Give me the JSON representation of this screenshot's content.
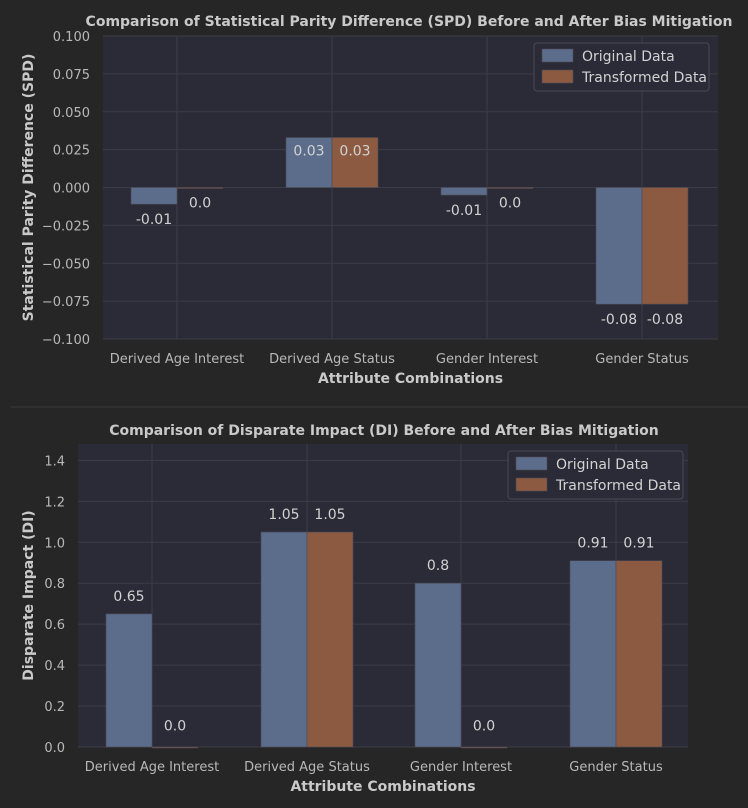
{
  "chart_data": [
    {
      "type": "bar",
      "title": "Comparison of Statistical Parity Difference (SPD) Before and After Bias Mitigation",
      "xlabel": "Attribute Combinations",
      "ylabel": "Statistical Parity Difference (SPD)",
      "categories": [
        "Derived Age Interest",
        "Derived Age Status",
        "Gender Interest",
        "Gender Status"
      ],
      "ylim": [
        -0.1,
        0.1
      ],
      "yticks": [
        -0.1,
        -0.075,
        -0.05,
        -0.025,
        0.0,
        0.025,
        0.05,
        0.075,
        0.1
      ],
      "ytick_labels": [
        "−0.100",
        "−0.075",
        "−0.050",
        "−0.025",
        "0.000",
        "0.025",
        "0.050",
        "0.075",
        "0.100"
      ],
      "grid": true,
      "legend_position": "top-right",
      "series": [
        {
          "name": "Original Data",
          "color": "#5c6d8c",
          "values": [
            -0.011,
            0.033,
            -0.005,
            -0.077
          ],
          "labels": [
            "-0.01",
            "0.03",
            "-0.01",
            "-0.08"
          ]
        },
        {
          "name": "Transformed Data",
          "color": "#8c5a40",
          "values": [
            0.0,
            0.033,
            0.0,
            -0.077
          ],
          "labels": [
            "0.0",
            "0.03",
            "0.0",
            "-0.08"
          ]
        }
      ]
    },
    {
      "type": "bar",
      "title": "Comparison of Disparate Impact (DI) Before and After Bias Mitigation",
      "xlabel": "Attribute Combinations",
      "ylabel": "Disparate Impact (DI)",
      "categories": [
        "Derived Age Interest",
        "Derived Age Status",
        "Gender Interest",
        "Gender Status"
      ],
      "ylim": [
        0.0,
        1.48
      ],
      "yticks": [
        0.0,
        0.2,
        0.4,
        0.6,
        0.8,
        1.0,
        1.2,
        1.4
      ],
      "ytick_labels": [
        "0.0",
        "0.2",
        "0.4",
        "0.6",
        "0.8",
        "1.0",
        "1.2",
        "1.4"
      ],
      "grid": true,
      "legend_position": "top-right",
      "series": [
        {
          "name": "Original Data",
          "color": "#5c6d8c",
          "values": [
            0.65,
            1.05,
            0.8,
            0.91
          ],
          "labels": [
            "0.65",
            "1.05",
            "0.8",
            "0.91"
          ]
        },
        {
          "name": "Transformed Data",
          "color": "#8c5a40",
          "values": [
            0.0,
            1.05,
            0.0,
            0.91
          ],
          "labels": [
            "0.0",
            "1.05",
            "0.0",
            "0.91"
          ]
        }
      ]
    }
  ]
}
